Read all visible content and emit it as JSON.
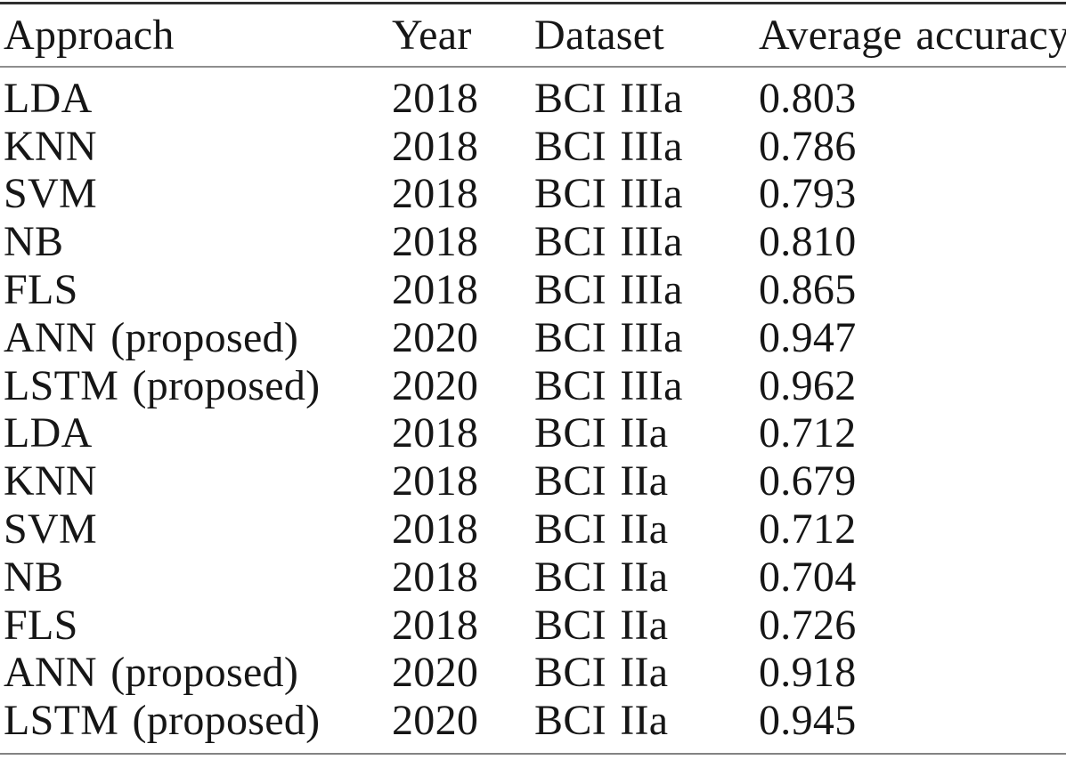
{
  "table": {
    "headers": [
      "Approach",
      "Year",
      "Dataset",
      "Average accuracy"
    ],
    "rows": [
      [
        "LDA",
        "2018",
        "BCI IIIa",
        "0.803"
      ],
      [
        "KNN",
        "2018",
        "BCI IIIa",
        "0.786"
      ],
      [
        "SVM",
        "2018",
        "BCI IIIa",
        "0.793"
      ],
      [
        "NB",
        "2018",
        "BCI IIIa",
        "0.810"
      ],
      [
        "FLS",
        "2018",
        "BCI IIIa",
        "0.865"
      ],
      [
        "ANN (proposed)",
        "2020",
        "BCI IIIa",
        "0.947"
      ],
      [
        "LSTM (proposed)",
        "2020",
        "BCI IIIa",
        "0.962"
      ],
      [
        "LDA",
        "2018",
        "BCI IIa",
        "0.712"
      ],
      [
        "KNN",
        "2018",
        "BCI IIa",
        "0.679"
      ],
      [
        "SVM",
        "2018",
        "BCI IIa",
        "0.712"
      ],
      [
        "NB",
        "2018",
        "BCI IIa",
        "0.704"
      ],
      [
        "FLS",
        "2018",
        "BCI IIa",
        "0.726"
      ],
      [
        "ANN (proposed)",
        "2020",
        "BCI IIa",
        "0.918"
      ],
      [
        "LSTM (proposed)",
        "2020",
        "BCI IIa",
        "0.945"
      ]
    ],
    "colors": {
      "text": "#161616",
      "rule_dark": "#2f2f2f",
      "rule_light": "#8e8e8e"
    }
  }
}
